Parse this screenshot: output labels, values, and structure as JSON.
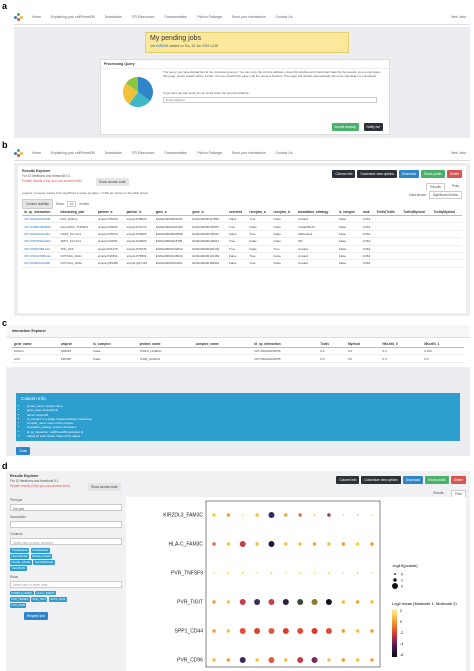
{
  "labels": {
    "a": "a",
    "b": "b",
    "c": "c",
    "d": "d"
  },
  "nav": {
    "items": [
      "Home",
      "Explaining your cellPhoneDB",
      "Downloads",
      "CPI Resources",
      "Documentation",
      "Python Package",
      "Send your interactions",
      "Contact Us"
    ],
    "right": "View Jobs"
  },
  "panel_a": {
    "title": "My pending jobs",
    "job_prefix": "Job",
    "job_id": "6383494",
    "job_suffix": "started on Thu, 20 Jun 2019 14:28",
    "processing_title": "Processing Query",
    "processing_text": "The query you have dispatched to the processing server. You can copy the current address, close this window and check back later for the results, as you can leave this page, as the results will be stored. You can refresh this page until the process finishes. This page will refresh automatically when the calculation is completed.",
    "email_prompt": "If you want we can send you an email when the process finishes:",
    "email_placeholder": "Email address",
    "btn_accept": "Accept anyway",
    "btn_notify": "Notify me"
  },
  "panel_b": {
    "title": "Results Explorer",
    "subtitle": "For 10 iterations and threshold 0.1",
    "private": "Private results (Only you can access here)",
    "show_access": "Show access code",
    "btn_column": "Column info",
    "btn_customize": "Customize view options",
    "btn_download": "Download",
    "btn_share": "Share public",
    "btn_delete": "Delete",
    "tabs": [
      "Results",
      "Plots"
    ],
    "legend": "Legend | receptor means from significant p-value (p-value < 0.05) are shown in the table below",
    "data_shown_label": "Data shown:",
    "data_shown_value": "Significant Means",
    "column_visibility": "Column visibility",
    "show_label": "Show",
    "show_value": "10",
    "entries_label": "entries",
    "columns": [
      "id_cp_interaction",
      "interacting_pair",
      "partner_a",
      "partner_b",
      "gene_a",
      "gene_b",
      "secreted",
      "receptor_a",
      "receptor_b",
      "annotation_strategy",
      "is_integrin",
      "rank",
      "Tcells|Tcells",
      "Tcells|Myeloid",
      "Tcells|Myeloid"
    ],
    "rows": [
      [
        "CPI-SS03A0C067B",
        "FAS_FASLG",
        "simple:P25445",
        "simple:P48023",
        "ENSG00000026103",
        "ENSG00000117560",
        "False",
        "True",
        "False",
        "curated",
        "False",
        "0.062",
        "",
        "",
        ""
      ],
      [
        "CPI-SS0B7AB4B3A",
        "HLA-DPA1_TNFSF9",
        "simple:P20036",
        "simple:P41273",
        "ENSG00000231389",
        "ENSG00000125657",
        "True",
        "False",
        "False",
        "InnateDB-All",
        "False",
        "0.062",
        "",
        "",
        ""
      ],
      [
        "CPI-SS0A4FA1A64",
        "CD44_SLC7A1",
        "simple:P16070",
        "simple:P30825",
        "ENSG00000026508",
        "ENSG00000139514",
        "False",
        "True",
        "False",
        "ABILinkout",
        "False",
        "0.062",
        "",
        "",
        ""
      ],
      [
        "CPI-SS07B3AA4D3",
        "SPP1_SLC7A1",
        "simple:P10451",
        "simple:P30825",
        "ENSG00000118785",
        "ENSG00000139514",
        "True",
        "False",
        "False",
        "I2D",
        "False",
        "0.062",
        "",
        "",
        ""
      ],
      [
        "CPI-SS0F44B1A2C",
        "TNF_FAS",
        "simple:P01375",
        "simple:P25445",
        "ENSG00000232810",
        "ENSG00000026103",
        "True",
        "False",
        "True",
        "curated",
        "False",
        "0.062",
        "",
        "",
        ""
      ],
      [
        "CPI-SS0A27DB14A",
        "NOTCH1_JAG1",
        "simple:P46531",
        "simple:P78504",
        "ENSG00000148400",
        "ENSG00000101384",
        "False",
        "True",
        "False",
        "curated",
        "False",
        "0.062",
        "",
        "",
        ""
      ],
      [
        "CPI-SS039C02AB5",
        "NOTCH4_JAG2",
        "simple:Q99466",
        "simple:Q9Y219",
        "ENSG00000204301",
        "ENSG00000184916",
        "False",
        "True",
        "False",
        "curated",
        "False",
        "0.062",
        "",
        "",
        ""
      ]
    ]
  },
  "panel_c": {
    "title": "Interaction Explorer",
    "columns": [
      "gene_name",
      "uniprot",
      "is_complex",
      "protein_name",
      "complex_name",
      "id_cp_interaction",
      "Tcells",
      "Myeloid",
      "NKcells_0",
      "NKcells_1"
    ],
    "rows": [
      [
        "FASLG",
        "P48023",
        "False",
        "TNFL6_HUMAN",
        "",
        "CPI-SS03A0C067B",
        "0.0",
        "0.0",
        "0.0",
        "0.425"
      ],
      [
        "FAS",
        "P25445",
        "False",
        "TNR6_HUMAN",
        "",
        "CPI-SS03A0C067B",
        "0.0",
        "0.0",
        "0.0",
        "0.0"
      ]
    ],
    "info_title": "Column info",
    "info_items": [
      "protein_name: Uniprot name",
      "gene_name: Ensembl ID",
      "name: Uniprot ID",
      "is_complex: is a single / transmembrane / heteromer",
      "complex_name: name of the complex",
      "annotation_strategy: protein information",
      "id_cp_interaction: CellPhoneDB interaction id",
      "values for each cluster: Mean of the values"
    ],
    "close": "Close"
  },
  "panel_d": {
    "title": "Results Explorer",
    "subtitle": "For 10 iterations and threshold 0.1",
    "private": "Private results (Only you can access here)",
    "show_access": "Show access code",
    "btn_column": "Column info",
    "btn_customize": "Customize view options",
    "btn_download": "Download",
    "btn_share": "Share public",
    "btn_delete": "Delete",
    "tabs": [
      "Results",
      "Plots"
    ],
    "plot_type_label": "Plot type",
    "plot_type_value": "Dot plot",
    "description_label": "Description",
    "columns_label": "Columns",
    "columns_placeholder": "Select one or more columns",
    "column_tags": [
      "Tcells|Myeloid",
      "Tcells|NKcells",
      "Myeloid|Tcells",
      "NKcells_0|Tcells",
      "NKcells_1|Tcells",
      "Myeloid|NKcells",
      "Tcells|Tcells"
    ],
    "rows_label": "Rows",
    "rows_placeholder": "Select one or more rows",
    "row_tags": [
      "KIR2DL3_FAM3C",
      "HLA-C_FAM3C",
      "PVR_TNFSF9",
      "PVR_TIGIT",
      "SPP1_CD44",
      "PVR_CD96"
    ],
    "request_button": "Request plot"
  },
  "chart_data": {
    "type": "scatter",
    "rows": [
      "KIR2DL3_FAM3C",
      "HLA-C_FAM3C",
      "PVR_TNFSF9",
      "PVR_TIGIT",
      "SPP1_CD44",
      "PVR_CD96"
    ],
    "n_columns": 12,
    "legend_size_title": "-log10(pvalue)",
    "legend_size_values": [
      "0",
      "1",
      "2"
    ],
    "legend_color_title": "Log2 mean (Molecule 1, Molecule 2)",
    "legend_color_ticks": [
      "2",
      "0",
      "-2",
      "-4",
      "-6"
    ],
    "points": [
      {
        "row": 0,
        "col": 0,
        "size": 1,
        "color": "#f5d130"
      },
      {
        "row": 0,
        "col": 1,
        "size": 1,
        "color": "#f39a2d"
      },
      {
        "row": 0,
        "col": 2,
        "size": 0,
        "color": "#f9e25a"
      },
      {
        "row": 0,
        "col": 3,
        "size": 1,
        "color": "#f5c13a"
      },
      {
        "row": 0,
        "col": 4,
        "size": 2,
        "color": "#3a2a57"
      },
      {
        "row": 0,
        "col": 5,
        "size": 1,
        "color": "#f2a23a"
      },
      {
        "row": 0,
        "col": 6,
        "size": 1,
        "color": "#e66a4a"
      },
      {
        "row": 0,
        "col": 7,
        "size": 0,
        "color": "#f5c13a"
      },
      {
        "row": 0,
        "col": 8,
        "size": 1,
        "color": "#8a3a6a"
      },
      {
        "row": 0,
        "col": 9,
        "size": 0,
        "color": "#f9e25a"
      },
      {
        "row": 0,
        "col": 10,
        "size": 0,
        "color": "#f5c13a"
      },
      {
        "row": 0,
        "col": 11,
        "size": 0,
        "color": "#f9e25a"
      },
      {
        "row": 1,
        "col": 0,
        "size": 1,
        "color": "#e96040"
      },
      {
        "row": 1,
        "col": 1,
        "size": 1,
        "color": "#f5c13a"
      },
      {
        "row": 1,
        "col": 2,
        "size": 2,
        "color": "#c33f4b"
      },
      {
        "row": 1,
        "col": 3,
        "size": 1,
        "color": "#f5c13a"
      },
      {
        "row": 1,
        "col": 4,
        "size": 2,
        "color": "#1a1a3a"
      },
      {
        "row": 1,
        "col": 5,
        "size": 1,
        "color": "#f5c13a"
      },
      {
        "row": 1,
        "col": 6,
        "size": 1,
        "color": "#f5c13a"
      },
      {
        "row": 1,
        "col": 7,
        "size": 1,
        "color": "#f39a2d"
      },
      {
        "row": 1,
        "col": 8,
        "size": 1,
        "color": "#f5c13a"
      },
      {
        "row": 1,
        "col": 9,
        "size": 1,
        "color": "#f39a2d"
      },
      {
        "row": 1,
        "col": 10,
        "size": 1,
        "color": "#f5d130"
      },
      {
        "row": 1,
        "col": 11,
        "size": 1,
        "color": "#f39a2d"
      },
      {
        "row": 2,
        "col": 0,
        "size": 0,
        "color": "#f9e25a"
      },
      {
        "row": 2,
        "col": 1,
        "size": 0,
        "color": "#f5d130"
      },
      {
        "row": 2,
        "col": 2,
        "size": 0,
        "color": "#f5d130"
      },
      {
        "row": 2,
        "col": 3,
        "size": 0,
        "color": "#f9e25a"
      },
      {
        "row": 2,
        "col": 4,
        "size": 0,
        "color": "#f5d130"
      },
      {
        "row": 2,
        "col": 5,
        "size": 0,
        "color": "#f9e25a"
      },
      {
        "row": 2,
        "col": 6,
        "size": 0,
        "color": "#f5d130"
      },
      {
        "row": 2,
        "col": 7,
        "size": 0,
        "color": "#f9e25a"
      },
      {
        "row": 2,
        "col": 8,
        "size": 0,
        "color": "#f5d130"
      },
      {
        "row": 2,
        "col": 9,
        "size": 0,
        "color": "#f9e25a"
      },
      {
        "row": 2,
        "col": 10,
        "size": 0,
        "color": "#f5d130"
      },
      {
        "row": 2,
        "col": 11,
        "size": 0,
        "color": "#f9e25a"
      },
      {
        "row": 3,
        "col": 0,
        "size": 1,
        "color": "#f39a2d"
      },
      {
        "row": 3,
        "col": 1,
        "size": 1,
        "color": "#f5c13a"
      },
      {
        "row": 3,
        "col": 2,
        "size": 2,
        "color": "#c33f4b"
      },
      {
        "row": 3,
        "col": 3,
        "size": 2,
        "color": "#3a2a57"
      },
      {
        "row": 3,
        "col": 4,
        "size": 2,
        "color": "#c33f4b"
      },
      {
        "row": 3,
        "col": 5,
        "size": 2,
        "color": "#2a2040"
      },
      {
        "row": 3,
        "col": 6,
        "size": 2,
        "color": "#3a4a3a"
      },
      {
        "row": 3,
        "col": 7,
        "size": 2,
        "color": "#8a7a2a"
      },
      {
        "row": 3,
        "col": 8,
        "size": 2,
        "color": "#101020"
      },
      {
        "row": 3,
        "col": 9,
        "size": 1,
        "color": "#f5c13a"
      },
      {
        "row": 3,
        "col": 10,
        "size": 1,
        "color": "#f39a2d"
      },
      {
        "row": 3,
        "col": 11,
        "size": 1,
        "color": "#f5c13a"
      },
      {
        "row": 4,
        "col": 0,
        "size": 1,
        "color": "#f39a2d"
      },
      {
        "row": 4,
        "col": 1,
        "size": 1,
        "color": "#f5c13a"
      },
      {
        "row": 4,
        "col": 2,
        "size": 2,
        "color": "#e84a3a"
      },
      {
        "row": 4,
        "col": 3,
        "size": 2,
        "color": "#d9432e"
      },
      {
        "row": 4,
        "col": 4,
        "size": 2,
        "color": "#e05a40"
      },
      {
        "row": 4,
        "col": 5,
        "size": 2,
        "color": "#d6402d"
      },
      {
        "row": 4,
        "col": 6,
        "size": 2,
        "color": "#e04a3a"
      },
      {
        "row": 4,
        "col": 7,
        "size": 2,
        "color": "#d83a2e"
      },
      {
        "row": 4,
        "col": 8,
        "size": 2,
        "color": "#e04a3a"
      },
      {
        "row": 4,
        "col": 9,
        "size": 1,
        "color": "#f39a2d"
      },
      {
        "row": 4,
        "col": 10,
        "size": 1,
        "color": "#f5c13a"
      },
      {
        "row": 4,
        "col": 11,
        "size": 1,
        "color": "#f39a2d"
      },
      {
        "row": 5,
        "col": 0,
        "size": 1,
        "color": "#f5c13a"
      },
      {
        "row": 5,
        "col": 1,
        "size": 1,
        "color": "#f39a2d"
      },
      {
        "row": 5,
        "col": 2,
        "size": 2,
        "color": "#3a2a57"
      },
      {
        "row": 5,
        "col": 3,
        "size": 1,
        "color": "#f5c13a"
      },
      {
        "row": 5,
        "col": 4,
        "size": 2,
        "color": "#e05a40"
      },
      {
        "row": 5,
        "col": 5,
        "size": 1,
        "color": "#f5c13a"
      },
      {
        "row": 5,
        "col": 6,
        "size": 2,
        "color": "#c33f4b"
      },
      {
        "row": 5,
        "col": 7,
        "size": 2,
        "color": "#7a2a5a"
      },
      {
        "row": 5,
        "col": 8,
        "size": 1,
        "color": "#f5c13a"
      },
      {
        "row": 5,
        "col": 9,
        "size": 1,
        "color": "#f39a2d"
      },
      {
        "row": 5,
        "col": 10,
        "size": 1,
        "color": "#f5c13a"
      },
      {
        "row": 5,
        "col": 11,
        "size": 1,
        "color": "#f39a2d"
      }
    ]
  },
  "pie": {
    "slices": [
      {
        "value": 35,
        "color": "#2e86c9"
      },
      {
        "value": 25,
        "color": "#3fb8c7"
      },
      {
        "value": 25,
        "color": "#f0c23a"
      },
      {
        "value": 15,
        "color": "#8cc63f"
      }
    ]
  }
}
